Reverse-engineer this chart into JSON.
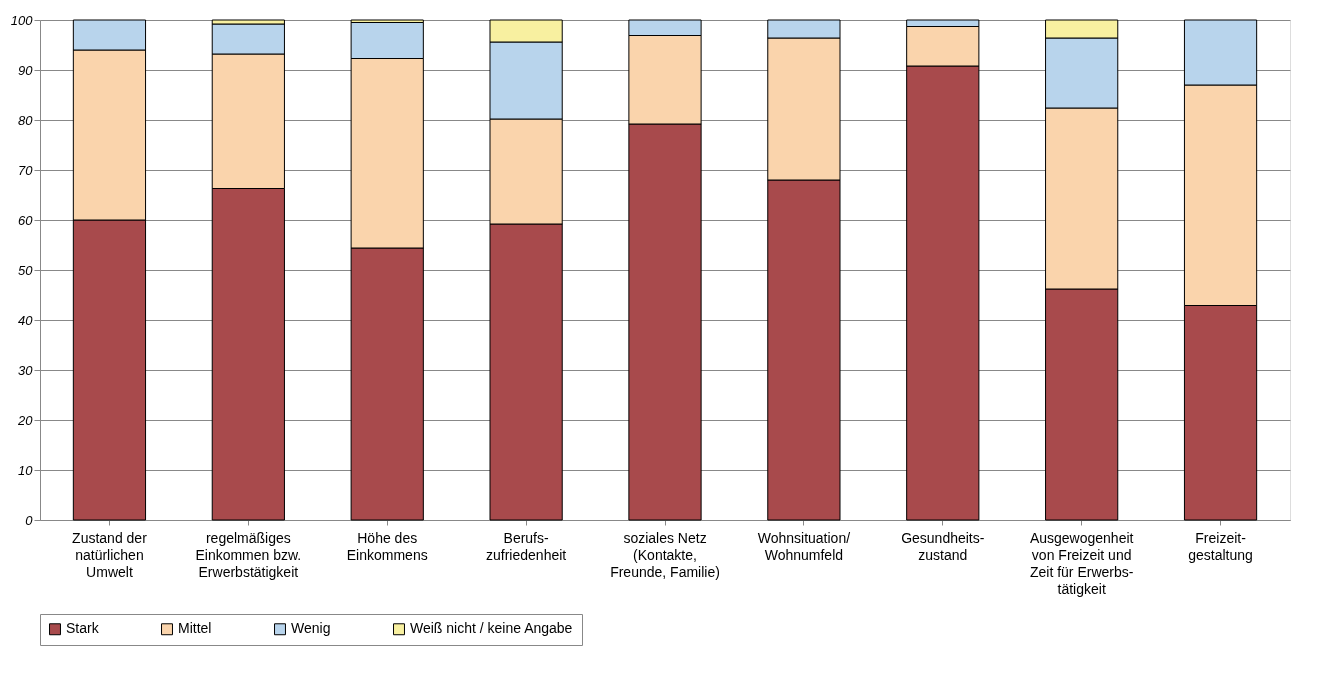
{
  "chart_data": {
    "type": "bar",
    "stacked": true,
    "categories": [
      "Zustand der\nnatürlichen\nUmwelt",
      "regelmäßiges\nEinkommen bzw.\nErwerbstätigkeit",
      "Höhe des\nEinkommens",
      "Berufs-\nzufriedenheit",
      "soziales Netz\n(Kontakte,\nFreunde, Familie)",
      "Wohnsituation/\nWohnumfeld",
      "Gesundheits-\nzustand",
      "Ausgewogenheit\nvon Freizeit und\nZeit für Erwerbs-\ntätigkeit",
      "Freizeit-\ngestaltung"
    ],
    "series": [
      {
        "name": "Stark",
        "color": "#a84a4c",
        "values": [
          60,
          66.3,
          54.4,
          59.2,
          79.2,
          68,
          90.8,
          46.2,
          42.9
        ]
      },
      {
        "name": "Mittel",
        "color": "#fad4ac",
        "values": [
          34,
          26.9,
          37.9,
          21,
          17.7,
          28.4,
          7.9,
          36.2,
          44.1
        ]
      },
      {
        "name": "Wenig",
        "color": "#b8d4ec",
        "values": [
          6,
          6,
          7.2,
          15.4,
          3.1,
          3.6,
          1.3,
          14,
          13
        ]
      },
      {
        "name": "Weiß nicht / keine Angabe",
        "color": "#f8f0a0",
        "values": [
          0,
          0.8,
          0.5,
          4.4,
          0,
          0,
          0,
          3.6,
          0
        ]
      }
    ],
    "ylim": [
      0,
      100
    ],
    "yticks": [
      0,
      10,
      20,
      30,
      40,
      50,
      60,
      70,
      80,
      90,
      100
    ],
    "grid": "y",
    "legend": "bottom"
  }
}
